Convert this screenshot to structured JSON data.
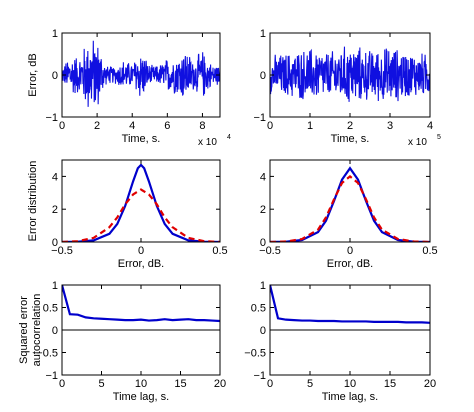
{
  "figure": {
    "label_text_color": "#000000",
    "axis_color": "#000000",
    "noise_color": "#1010e0"
  },
  "chart_data": [
    {
      "id": "error-time-1",
      "type": "line",
      "xlabel": "Time, s.",
      "ylabel": "Error, dB",
      "x_multiplier": "x 10",
      "x_multiplier_exp": "4",
      "xlim": [
        0,
        9
      ],
      "ylim": [
        -1,
        1
      ],
      "xticks": [
        0,
        2,
        4,
        6,
        8
      ],
      "xtick_labels": [
        "0",
        "2",
        "4",
        "6",
        "8"
      ],
      "yticks": [
        -1,
        0,
        1
      ],
      "ytick_labels": [
        "−1",
        "0",
        "1"
      ],
      "series": [
        {
          "color": "#1010e0",
          "style": "solid",
          "x": [
            0,
            0.5,
            1,
            1.5,
            2,
            2.5,
            3,
            3.5,
            4,
            4.5,
            5,
            5.5,
            6,
            6.5,
            7,
            7.5,
            8,
            8.5,
            9
          ],
          "envelope": [
            0.18,
            0.55,
            0.5,
            1.0,
            0.95,
            0.25,
            0.22,
            0.4,
            0.3,
            0.7,
            0.25,
            0.25,
            0.45,
            0.5,
            0.7,
            0.4,
            0.65,
            0.3,
            0.25
          ]
        }
      ]
    },
    {
      "id": "error-time-2",
      "type": "line",
      "xlabel": "Time, s.",
      "ylabel": "",
      "x_multiplier": "x 10",
      "x_multiplier_exp": "5",
      "xlim": [
        0,
        4
      ],
      "ylim": [
        -1,
        1
      ],
      "xticks": [
        0,
        1,
        2,
        3,
        4
      ],
      "xtick_labels": [
        "0",
        "1",
        "2",
        "3",
        "4"
      ],
      "yticks": [
        -1,
        0,
        1
      ],
      "ytick_labels": [
        "−1",
        "0",
        "1"
      ],
      "series": [
        {
          "color": "#1010e0",
          "style": "solid",
          "x": [
            0,
            0.5,
            1,
            1.5,
            2,
            2.5,
            3,
            3.5,
            4
          ],
          "envelope": [
            0.5,
            0.6,
            0.7,
            0.6,
            0.8,
            0.65,
            0.75,
            0.6,
            0.55
          ]
        }
      ]
    },
    {
      "id": "error-dist-1",
      "type": "line",
      "xlabel": "Error, dB.",
      "ylabel": "Error distribution",
      "xlim": [
        -0.5,
        0.5
      ],
      "ylim": [
        0,
        5
      ],
      "xticks": [
        -0.5,
        0,
        0.5
      ],
      "xtick_labels": [
        "−0.5",
        "0",
        "0.5"
      ],
      "yticks": [
        0,
        2,
        4
      ],
      "ytick_labels": [
        "0",
        "2",
        "4"
      ],
      "series": [
        {
          "color": "#0000cc",
          "style": "solid",
          "x": [
            -0.5,
            -0.4,
            -0.3,
            -0.2,
            -0.15,
            -0.1,
            -0.05,
            -0.02,
            0,
            0.02,
            0.05,
            0.1,
            0.15,
            0.2,
            0.3,
            0.4,
            0.5
          ],
          "y": [
            0,
            0.02,
            0.1,
            0.5,
            1.1,
            2.2,
            3.7,
            4.5,
            4.7,
            4.5,
            3.7,
            2.2,
            1.1,
            0.5,
            0.1,
            0.02,
            0
          ]
        },
        {
          "color": "#e00000",
          "style": "dashed",
          "x": [
            -0.5,
            -0.4,
            -0.3,
            -0.2,
            -0.15,
            -0.1,
            -0.05,
            0,
            0.05,
            0.1,
            0.15,
            0.2,
            0.3,
            0.4,
            0.5
          ],
          "y": [
            0,
            0.05,
            0.25,
            0.9,
            1.5,
            2.3,
            2.9,
            3.2,
            2.9,
            2.3,
            1.5,
            0.9,
            0.25,
            0.05,
            0
          ]
        }
      ]
    },
    {
      "id": "error-dist-2",
      "type": "line",
      "xlabel": "Error, dB.",
      "ylabel": "",
      "xlim": [
        -0.5,
        0.5
      ],
      "ylim": [
        0,
        5
      ],
      "xticks": [
        -0.5,
        0,
        0.5
      ],
      "xtick_labels": [
        "−0.5",
        "0",
        "0.5"
      ],
      "yticks": [
        0,
        2,
        4
      ],
      "ytick_labels": [
        "0",
        "2",
        "4"
      ],
      "series": [
        {
          "color": "#0000cc",
          "style": "solid",
          "x": [
            -0.5,
            -0.4,
            -0.3,
            -0.2,
            -0.15,
            -0.1,
            -0.05,
            0,
            0.05,
            0.1,
            0.15,
            0.2,
            0.3,
            0.4,
            0.5
          ],
          "y": [
            0,
            0.02,
            0.12,
            0.6,
            1.3,
            2.5,
            3.8,
            4.5,
            3.8,
            2.5,
            1.3,
            0.6,
            0.12,
            0.02,
            0
          ]
        },
        {
          "color": "#e00000",
          "style": "dashed",
          "x": [
            -0.5,
            -0.4,
            -0.3,
            -0.2,
            -0.15,
            -0.1,
            -0.05,
            0,
            0.05,
            0.1,
            0.15,
            0.2,
            0.3,
            0.4,
            0.5
          ],
          "y": [
            0,
            0.03,
            0.18,
            0.75,
            1.5,
            2.6,
            3.6,
            4.0,
            3.6,
            2.6,
            1.5,
            0.75,
            0.18,
            0.03,
            0
          ]
        }
      ]
    },
    {
      "id": "autocorr-1",
      "type": "line",
      "xlabel": "Time lag, s.",
      "ylabel": "Squared error",
      "ylabel2": "autocorrelation",
      "xlim": [
        0,
        20
      ],
      "ylim": [
        -1,
        1
      ],
      "xticks": [
        0,
        5,
        10,
        15,
        20
      ],
      "xtick_labels": [
        "0",
        "5",
        "10",
        "15",
        "20"
      ],
      "yticks": [
        -1,
        -0.5,
        0,
        0.5,
        1
      ],
      "ytick_labels": [
        "−1",
        "−0.5",
        "0",
        "0.5",
        "1"
      ],
      "series": [
        {
          "color": "#0000cc",
          "style": "solid",
          "x": [
            0,
            1,
            2,
            3,
            4,
            5,
            6,
            7,
            8,
            9,
            10,
            11,
            12,
            13,
            14,
            15,
            16,
            17,
            18,
            19,
            20
          ],
          "y": [
            1,
            0.35,
            0.34,
            0.28,
            0.26,
            0.25,
            0.24,
            0.23,
            0.22,
            0.22,
            0.23,
            0.21,
            0.22,
            0.24,
            0.22,
            0.23,
            0.24,
            0.22,
            0.22,
            0.21,
            0.2
          ]
        },
        {
          "color": "#000000",
          "style": "solid",
          "x": [
            0,
            20
          ],
          "y": [
            0,
            0
          ]
        }
      ]
    },
    {
      "id": "autocorr-2",
      "type": "line",
      "xlabel": "Time lag, s.",
      "ylabel": "",
      "xlim": [
        0,
        20
      ],
      "ylim": [
        -1,
        1
      ],
      "xticks": [
        0,
        5,
        10,
        15,
        20
      ],
      "xtick_labels": [
        "0",
        "5",
        "10",
        "15",
        "20"
      ],
      "yticks": [
        -1,
        -0.5,
        0,
        0.5,
        1
      ],
      "ytick_labels": [
        "−1",
        "−0.5",
        "0",
        "0.5",
        "1"
      ],
      "series": [
        {
          "color": "#0000cc",
          "style": "solid",
          "x": [
            0,
            1,
            2,
            3,
            4,
            5,
            6,
            7,
            8,
            9,
            10,
            11,
            12,
            13,
            14,
            15,
            16,
            17,
            18,
            19,
            20
          ],
          "y": [
            1,
            0.26,
            0.23,
            0.22,
            0.21,
            0.21,
            0.2,
            0.2,
            0.2,
            0.19,
            0.19,
            0.19,
            0.19,
            0.18,
            0.18,
            0.18,
            0.18,
            0.17,
            0.17,
            0.17,
            0.16
          ]
        },
        {
          "color": "#000000",
          "style": "solid",
          "x": [
            0,
            20
          ],
          "y": [
            0,
            0
          ]
        }
      ]
    }
  ]
}
